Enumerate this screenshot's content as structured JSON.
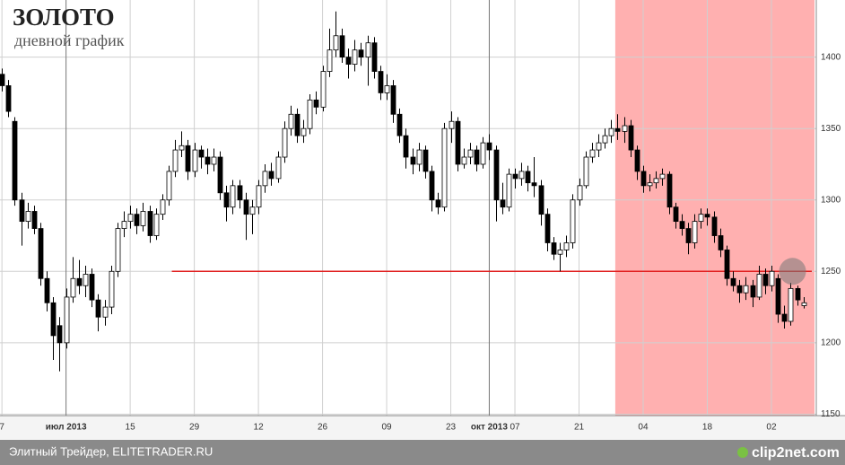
{
  "chart_data": {
    "type": "candlestick",
    "title": "ЗОЛОТО",
    "subtitle": "дневной график",
    "footer": "Элитный Трейдер, ELITETRADER.RU",
    "watermark": "clip2net.com",
    "xlim": [
      -0.3,
      127
    ],
    "ylim": [
      1149,
      1440
    ],
    "xticks": [
      {
        "value": 0,
        "label": "7"
      },
      {
        "value": 10,
        "label": "июл 2013"
      },
      {
        "value": 20,
        "label": "15"
      },
      {
        "value": 30,
        "label": "29"
      },
      {
        "value": 40,
        "label": "12"
      },
      {
        "value": 50,
        "label": "26"
      },
      {
        "value": 60,
        "label": "09"
      },
      {
        "value": 70,
        "label": "23"
      },
      {
        "value": 76,
        "label": "окт 2013"
      },
      {
        "value": 80,
        "label": "07"
      },
      {
        "value": 90,
        "label": "21"
      },
      {
        "value": 100,
        "label": "04"
      },
      {
        "value": 110,
        "label": "18"
      },
      {
        "value": 120,
        "label": "02"
      }
    ],
    "yticks": [
      1150,
      1200,
      1250,
      1300,
      1350,
      1400
    ],
    "grid": true,
    "up_color": "#ffffff",
    "down_color": "#000000",
    "shaded_range": [
      95.65,
      127
    ],
    "shade_color": "#ffb0b0",
    "level": {
      "value": 1250,
      "from": 26.5,
      "to": 126.3,
      "color": "#e02020"
    },
    "marker": {
      "x": 123.3,
      "y": 1250
    },
    "open": [
      1388,
      1380,
      1355,
      1300,
      1285,
      1292,
      1280,
      1245,
      1228,
      1212,
      1200,
      1232,
      1245,
      1240,
      1248,
      1230,
      1218,
      1225,
      1250,
      1280,
      1285,
      1290,
      1282,
      1292,
      1275,
      1290,
      1300,
      1320,
      1335,
      1338,
      1320,
      1335,
      1330,
      1325,
      1330,
      1305,
      1295,
      1310,
      1300,
      1290,
      1295,
      1310,
      1320,
      1315,
      1330,
      1350,
      1360,
      1345,
      1350,
      1370,
      1365,
      1390,
      1405,
      1415,
      1400,
      1395,
      1405,
      1400,
      1410,
      1390,
      1375,
      1380,
      1360,
      1345,
      1330,
      1325,
      1335,
      1320,
      1300,
      1295,
      1350,
      1355,
      1325,
      1330,
      1335,
      1325,
      1340,
      1335,
      1300,
      1295,
      1318,
      1315,
      1320,
      1312,
      1310,
      1290,
      1270,
      1262,
      1265,
      1270,
      1300,
      1310,
      1330,
      1335,
      1340,
      1345,
      1350,
      1348,
      1352,
      1335,
      1320,
      1310,
      1312,
      1315,
      1318,
      1295,
      1285,
      1280,
      1270,
      1285,
      1290,
      1288,
      1275,
      1265,
      1245,
      1240,
      1235,
      1240,
      1232,
      1248,
      1240,
      1245,
      1220,
      1215,
      1238,
      1226
    ],
    "high": [
      1392,
      1384,
      1358,
      1305,
      1298,
      1296,
      1284,
      1250,
      1232,
      1218,
      1238,
      1260,
      1258,
      1254,
      1252,
      1234,
      1230,
      1254,
      1284,
      1292,
      1296,
      1294,
      1298,
      1296,
      1294,
      1304,
      1324,
      1342,
      1348,
      1342,
      1340,
      1338,
      1336,
      1336,
      1334,
      1310,
      1314,
      1314,
      1305,
      1300,
      1314,
      1325,
      1326,
      1334,
      1355,
      1366,
      1364,
      1356,
      1374,
      1376,
      1394,
      1420,
      1432,
      1420,
      1406,
      1412,
      1410,
      1415,
      1414,
      1394,
      1388,
      1384,
      1364,
      1350,
      1336,
      1340,
      1338,
      1324,
      1305,
      1354,
      1362,
      1358,
      1336,
      1340,
      1338,
      1344,
      1346,
      1338,
      1312,
      1322,
      1322,
      1326,
      1324,
      1330,
      1314,
      1294,
      1274,
      1270,
      1275,
      1304,
      1315,
      1334,
      1340,
      1346,
      1350,
      1356,
      1360,
      1358,
      1356,
      1338,
      1324,
      1318,
      1320,
      1322,
      1320,
      1298,
      1290,
      1284,
      1290,
      1294,
      1294,
      1292,
      1280,
      1268,
      1250,
      1244,
      1246,
      1244,
      1254,
      1252,
      1254,
      1248,
      1226,
      1242,
      1240,
      1232
    ],
    "low": [
      1376,
      1358,
      1296,
      1268,
      1280,
      1276,
      1240,
      1222,
      1188,
      1180,
      1196,
      1228,
      1234,
      1232,
      1225,
      1208,
      1212,
      1220,
      1246,
      1274,
      1280,
      1276,
      1278,
      1270,
      1272,
      1286,
      1296,
      1316,
      1330,
      1314,
      1316,
      1322,
      1318,
      1320,
      1300,
      1285,
      1290,
      1294,
      1272,
      1276,
      1290,
      1305,
      1310,
      1312,
      1326,
      1345,
      1340,
      1340,
      1346,
      1360,
      1362,
      1386,
      1400,
      1396,
      1385,
      1390,
      1394,
      1380,
      1385,
      1370,
      1370,
      1354,
      1340,
      1322,
      1318,
      1320,
      1315,
      1292,
      1290,
      1292,
      1340,
      1320,
      1322,
      1325,
      1320,
      1322,
      1328,
      1285,
      1290,
      1292,
      1308,
      1310,
      1306,
      1302,
      1282,
      1264,
      1258,
      1250,
      1260,
      1266,
      1296,
      1308,
      1326,
      1330,
      1336,
      1340,
      1342,
      1340,
      1330,
      1314,
      1305,
      1306,
      1308,
      1310,
      1290,
      1280,
      1275,
      1262,
      1266,
      1280,
      1282,
      1270,
      1260,
      1240,
      1236,
      1228,
      1230,
      1225,
      1230,
      1234,
      1236,
      1214,
      1210,
      1212,
      1226,
      1224
    ],
    "close": [
      1380,
      1362,
      1300,
      1285,
      1292,
      1280,
      1245,
      1228,
      1205,
      1200,
      1232,
      1245,
      1240,
      1248,
      1230,
      1218,
      1225,
      1250,
      1280,
      1285,
      1290,
      1282,
      1292,
      1275,
      1290,
      1300,
      1320,
      1335,
      1338,
      1320,
      1335,
      1330,
      1325,
      1330,
      1305,
      1295,
      1310,
      1300,
      1290,
      1295,
      1310,
      1320,
      1315,
      1330,
      1350,
      1360,
      1345,
      1350,
      1370,
      1365,
      1390,
      1405,
      1415,
      1400,
      1395,
      1405,
      1400,
      1410,
      1390,
      1375,
      1380,
      1360,
      1345,
      1330,
      1325,
      1335,
      1320,
      1300,
      1295,
      1350,
      1355,
      1325,
      1330,
      1335,
      1325,
      1340,
      1335,
      1300,
      1295,
      1318,
      1315,
      1320,
      1312,
      1310,
      1290,
      1270,
      1262,
      1265,
      1270,
      1300,
      1310,
      1330,
      1335,
      1340,
      1345,
      1350,
      1348,
      1352,
      1335,
      1320,
      1310,
      1312,
      1315,
      1318,
      1295,
      1285,
      1280,
      1270,
      1285,
      1290,
      1288,
      1275,
      1265,
      1245,
      1240,
      1235,
      1240,
      1232,
      1248,
      1240,
      1250,
      1220,
      1215,
      1238,
      1230,
      1228
    ]
  }
}
